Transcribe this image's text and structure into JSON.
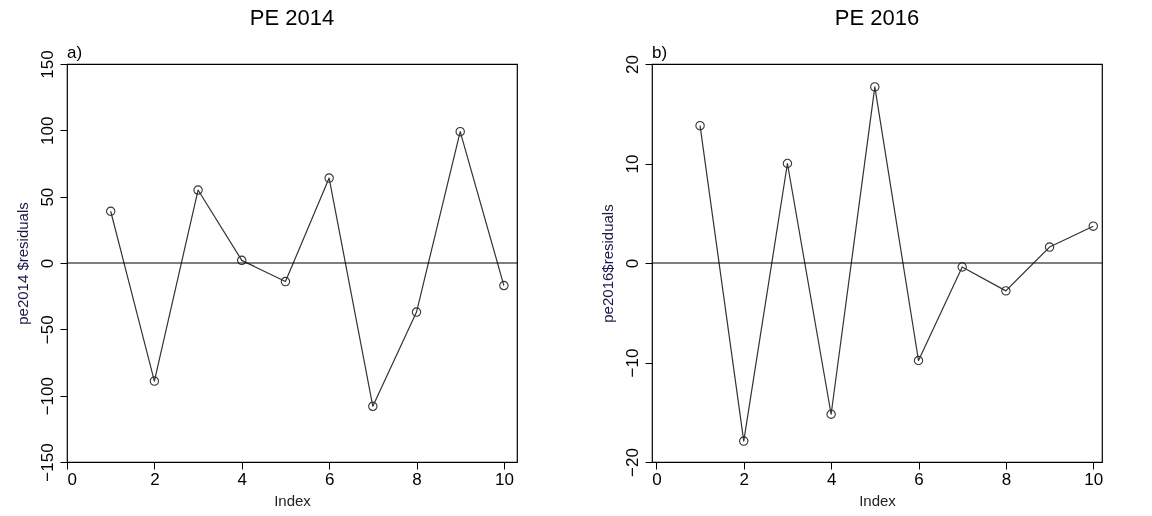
{
  "chart_data": [
    {
      "type": "line",
      "title": "PE 2014",
      "xlabel": "Index",
      "ylabel": "pe2014 $residuals",
      "annotations": [
        "a)"
      ],
      "x": [
        1,
        2,
        3,
        4,
        5,
        6,
        7,
        8,
        9,
        10
      ],
      "series": [
        {
          "color": "#333333",
          "values": [
            39,
            -89,
            55,
            2,
            -14,
            64,
            -108,
            -37,
            99,
            -17
          ]
        }
      ],
      "xlim": [
        0,
        10.3
      ],
      "xticks": [
        0,
        2,
        4,
        6,
        8,
        10
      ],
      "ylim": [
        -150,
        150
      ],
      "yticks": [
        -150,
        -100,
        -50,
        0,
        50,
        100,
        150
      ],
      "ref_lines": [
        {
          "axis": "y",
          "value": 0,
          "color": "#000000"
        }
      ],
      "marker": "circle",
      "line_style": "solid",
      "grid": false
    },
    {
      "type": "line",
      "title": "PE 2016",
      "xlabel": "Index",
      "ylabel": "pe2016$residuals",
      "annotations": [
        "b)"
      ],
      "x": [
        1,
        2,
        3,
        4,
        5,
        6,
        7,
        8,
        9,
        10
      ],
      "series": [
        {
          "color": "#333333",
          "values": [
            13.8,
            -17.9,
            10,
            -15.2,
            17.7,
            -9.8,
            -0.4,
            -2.8,
            1.6,
            3.7
          ]
        }
      ],
      "xlim": [
        -0.1,
        10.2
      ],
      "xticks": [
        0,
        2,
        4,
        6,
        8,
        10
      ],
      "ylim": [
        -20,
        20
      ],
      "yticks": [
        -20,
        -10,
        0,
        10,
        20
      ],
      "ref_lines": [
        {
          "axis": "y",
          "value": 0,
          "color": "#000000"
        }
      ],
      "marker": "circle",
      "line_style": "solid",
      "grid": false
    }
  ]
}
